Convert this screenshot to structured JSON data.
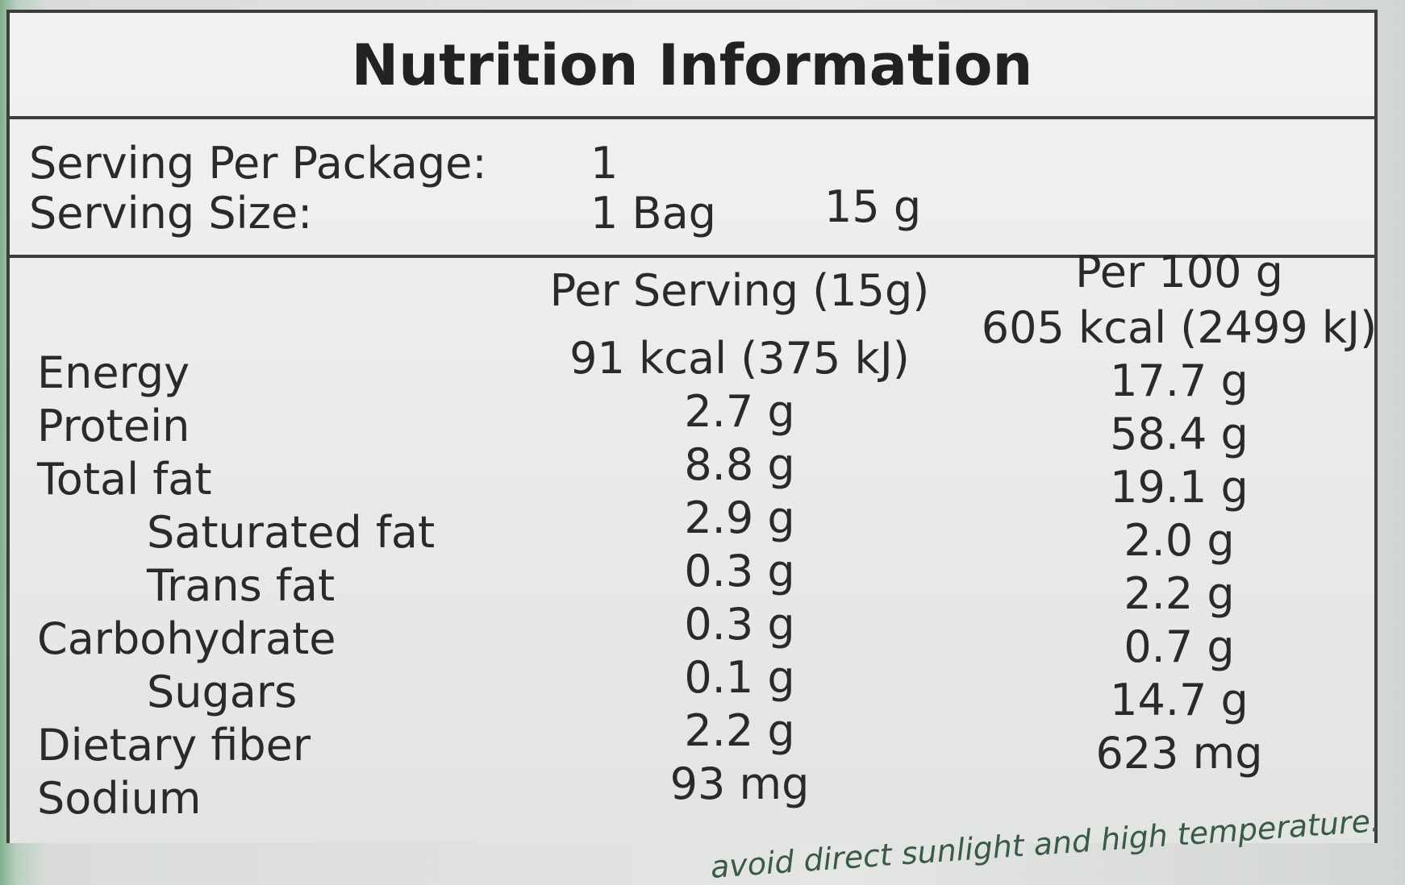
{
  "title": "Nutrition Information",
  "serving": {
    "per_package_label": "Serving Per Package:",
    "per_package_value": "1",
    "size_label": "Serving Size:",
    "size_value": "1 Bag",
    "size_weight": "15 g"
  },
  "table": {
    "columns": [
      "Per Serving (15g)",
      "Per 100 g"
    ],
    "rows": [
      [
        "Energy",
        "91 kcal (375 kJ)",
        "605 kcal (2499 kJ)"
      ],
      [
        "Protein",
        "2.7 g",
        "17.7 g"
      ],
      [
        "Total fat",
        "8.8 g",
        "58.4 g"
      ],
      [
        "Saturated fat",
        "2.9 g",
        "19.1 g"
      ],
      [
        "Trans fat",
        "0.3 g",
        "2.0 g"
      ],
      [
        "Carbohydrate",
        "0.3 g",
        "2.2 g"
      ],
      [
        "Sugars",
        "0.1 g",
        "0.7 g"
      ],
      [
        "Dietary fiber",
        "2.2 g",
        "14.7 g"
      ],
      [
        "Sodium",
        "93 mg",
        "623 mg"
      ]
    ]
  },
  "footer": {
    "note": "avoid direct sunlight and high temperature."
  }
}
